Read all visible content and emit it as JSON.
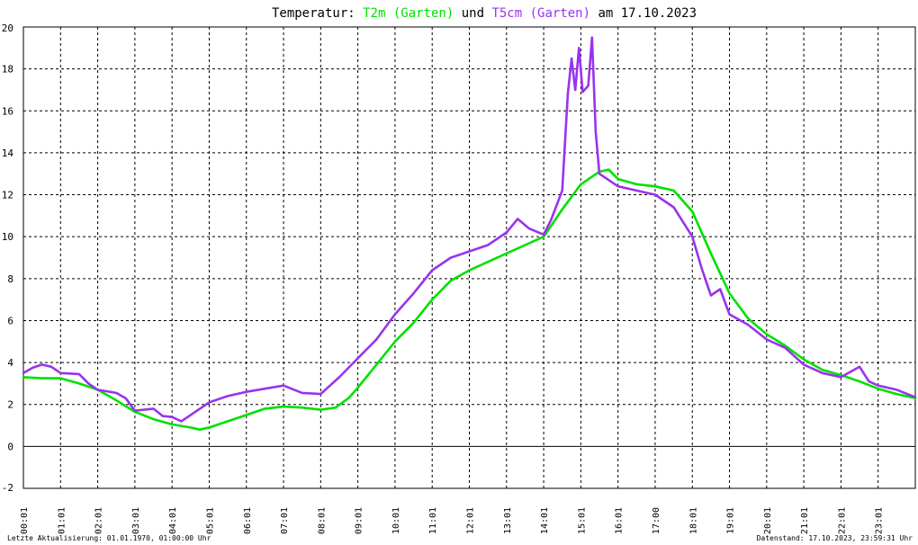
{
  "title": {
    "prefix": "Temperatur: ",
    "series1": "T2m (Garten)",
    "middle": " und ",
    "series2": "T5cm (Garten)",
    "suffix": " am 17.10.2023"
  },
  "footer": {
    "left": "Letzte Aktualisierung: 01.01.1970, 01:00:00 Uhr",
    "right": "Datenstand: 17.10.2023, 23:59:31 Uhr"
  },
  "colors": {
    "background": "#ffffff",
    "grid": "#000000",
    "t2m": "#00e000",
    "t5cm": "#9933ee",
    "title_text": "#000000"
  },
  "chart_data": {
    "type": "line",
    "xlim": [
      0,
      24
    ],
    "ylim": [
      -2,
      20
    ],
    "grid": true,
    "x_ticks": [
      0,
      1,
      2,
      3,
      4,
      5,
      6,
      7,
      8,
      9,
      10,
      11,
      12,
      13,
      14,
      15,
      16,
      17,
      18,
      19,
      20,
      21,
      22,
      23
    ],
    "x_tick_labels": [
      "00:01",
      "01:01",
      "02:01",
      "03:01",
      "04:01",
      "05:01",
      "06:01",
      "07:01",
      "08:01",
      "09:01",
      "10:01",
      "11:01",
      "12:01",
      "13:01",
      "14:01",
      "15:01",
      "16:01",
      "17:00",
      "18:01",
      "19:01",
      "20:01",
      "21:01",
      "22:01",
      "23:01"
    ],
    "y_ticks": [
      -2,
      0,
      2,
      4,
      6,
      8,
      10,
      12,
      14,
      16,
      18,
      20
    ],
    "y_tick_labels": [
      "-2",
      "0",
      "2",
      "4",
      "6",
      "8",
      "10",
      "12",
      "14",
      "16",
      "18",
      "20"
    ],
    "series": [
      {
        "name": "T2m (Garten)",
        "color": "#00e000",
        "points": [
          [
            0,
            3.3
          ],
          [
            0.5,
            3.25
          ],
          [
            1,
            3.25
          ],
          [
            1.5,
            3.0
          ],
          [
            2,
            2.7
          ],
          [
            2.5,
            2.2
          ],
          [
            3,
            1.65
          ],
          [
            3.5,
            1.3
          ],
          [
            4,
            1.05
          ],
          [
            4.5,
            0.9
          ],
          [
            4.75,
            0.8
          ],
          [
            5,
            0.9
          ],
          [
            5.5,
            1.2
          ],
          [
            6,
            1.5
          ],
          [
            6.5,
            1.8
          ],
          [
            7,
            1.9
          ],
          [
            7.5,
            1.85
          ],
          [
            8,
            1.75
          ],
          [
            8.4,
            1.85
          ],
          [
            8.75,
            2.3
          ],
          [
            9,
            2.8
          ],
          [
            9.5,
            3.9
          ],
          [
            10,
            5.0
          ],
          [
            10.5,
            5.9
          ],
          [
            11,
            7.0
          ],
          [
            11.5,
            7.9
          ],
          [
            12,
            8.4
          ],
          [
            12.5,
            8.8
          ],
          [
            13,
            9.2
          ],
          [
            13.5,
            9.6
          ],
          [
            14,
            10.0
          ],
          [
            14.5,
            11.3
          ],
          [
            15,
            12.5
          ],
          [
            15.5,
            13.1
          ],
          [
            15.75,
            13.2
          ],
          [
            16,
            12.75
          ],
          [
            16.5,
            12.5
          ],
          [
            17,
            12.4
          ],
          [
            17.5,
            12.2
          ],
          [
            18,
            11.2
          ],
          [
            18.5,
            9.2
          ],
          [
            19,
            7.3
          ],
          [
            19.5,
            6.1
          ],
          [
            20,
            5.35
          ],
          [
            20.5,
            4.8
          ],
          [
            21,
            4.15
          ],
          [
            21.5,
            3.65
          ],
          [
            22,
            3.4
          ],
          [
            22.5,
            3.1
          ],
          [
            23,
            2.75
          ],
          [
            23.5,
            2.5
          ],
          [
            24,
            2.3
          ]
        ]
      },
      {
        "name": "T5cm (Garten)",
        "color": "#9933ee",
        "points": [
          [
            0,
            3.5
          ],
          [
            0.25,
            3.75
          ],
          [
            0.5,
            3.9
          ],
          [
            0.75,
            3.8
          ],
          [
            1,
            3.5
          ],
          [
            1.5,
            3.45
          ],
          [
            1.75,
            3.0
          ],
          [
            2,
            2.7
          ],
          [
            2.5,
            2.55
          ],
          [
            2.75,
            2.3
          ],
          [
            3,
            1.7
          ],
          [
            3.5,
            1.8
          ],
          [
            3.75,
            1.45
          ],
          [
            4,
            1.4
          ],
          [
            4.25,
            1.2
          ],
          [
            4.5,
            1.5
          ],
          [
            5,
            2.1
          ],
          [
            5.5,
            2.4
          ],
          [
            6,
            2.6
          ],
          [
            6.5,
            2.75
          ],
          [
            7,
            2.9
          ],
          [
            7.5,
            2.55
          ],
          [
            8,
            2.5
          ],
          [
            8.25,
            2.9
          ],
          [
            8.5,
            3.3
          ],
          [
            9,
            4.2
          ],
          [
            9.5,
            5.1
          ],
          [
            10,
            6.3
          ],
          [
            10.5,
            7.3
          ],
          [
            11,
            8.4
          ],
          [
            11.5,
            9.0
          ],
          [
            12,
            9.3
          ],
          [
            12.5,
            9.6
          ],
          [
            13,
            10.2
          ],
          [
            13.3,
            10.85
          ],
          [
            13.6,
            10.4
          ],
          [
            14,
            10.1
          ],
          [
            14.2,
            10.8
          ],
          [
            14.5,
            12.2
          ],
          [
            14.65,
            16.8
          ],
          [
            14.75,
            18.5
          ],
          [
            14.85,
            17.0
          ],
          [
            14.95,
            19.0
          ],
          [
            15.05,
            16.9
          ],
          [
            15.2,
            17.2
          ],
          [
            15.3,
            19.5
          ],
          [
            15.4,
            15.0
          ],
          [
            15.5,
            13.0
          ],
          [
            16,
            12.4
          ],
          [
            16.5,
            12.2
          ],
          [
            17,
            12.0
          ],
          [
            17.5,
            11.4
          ],
          [
            18,
            10.0
          ],
          [
            18.25,
            8.5
          ],
          [
            18.5,
            7.2
          ],
          [
            18.75,
            7.5
          ],
          [
            19,
            6.3
          ],
          [
            19.5,
            5.8
          ],
          [
            20,
            5.1
          ],
          [
            20.5,
            4.7
          ],
          [
            21,
            3.9
          ],
          [
            21.5,
            3.5
          ],
          [
            22,
            3.3
          ],
          [
            22.5,
            3.8
          ],
          [
            22.75,
            3.1
          ],
          [
            23,
            2.9
          ],
          [
            23.5,
            2.7
          ],
          [
            24,
            2.35
          ]
        ]
      }
    ]
  }
}
